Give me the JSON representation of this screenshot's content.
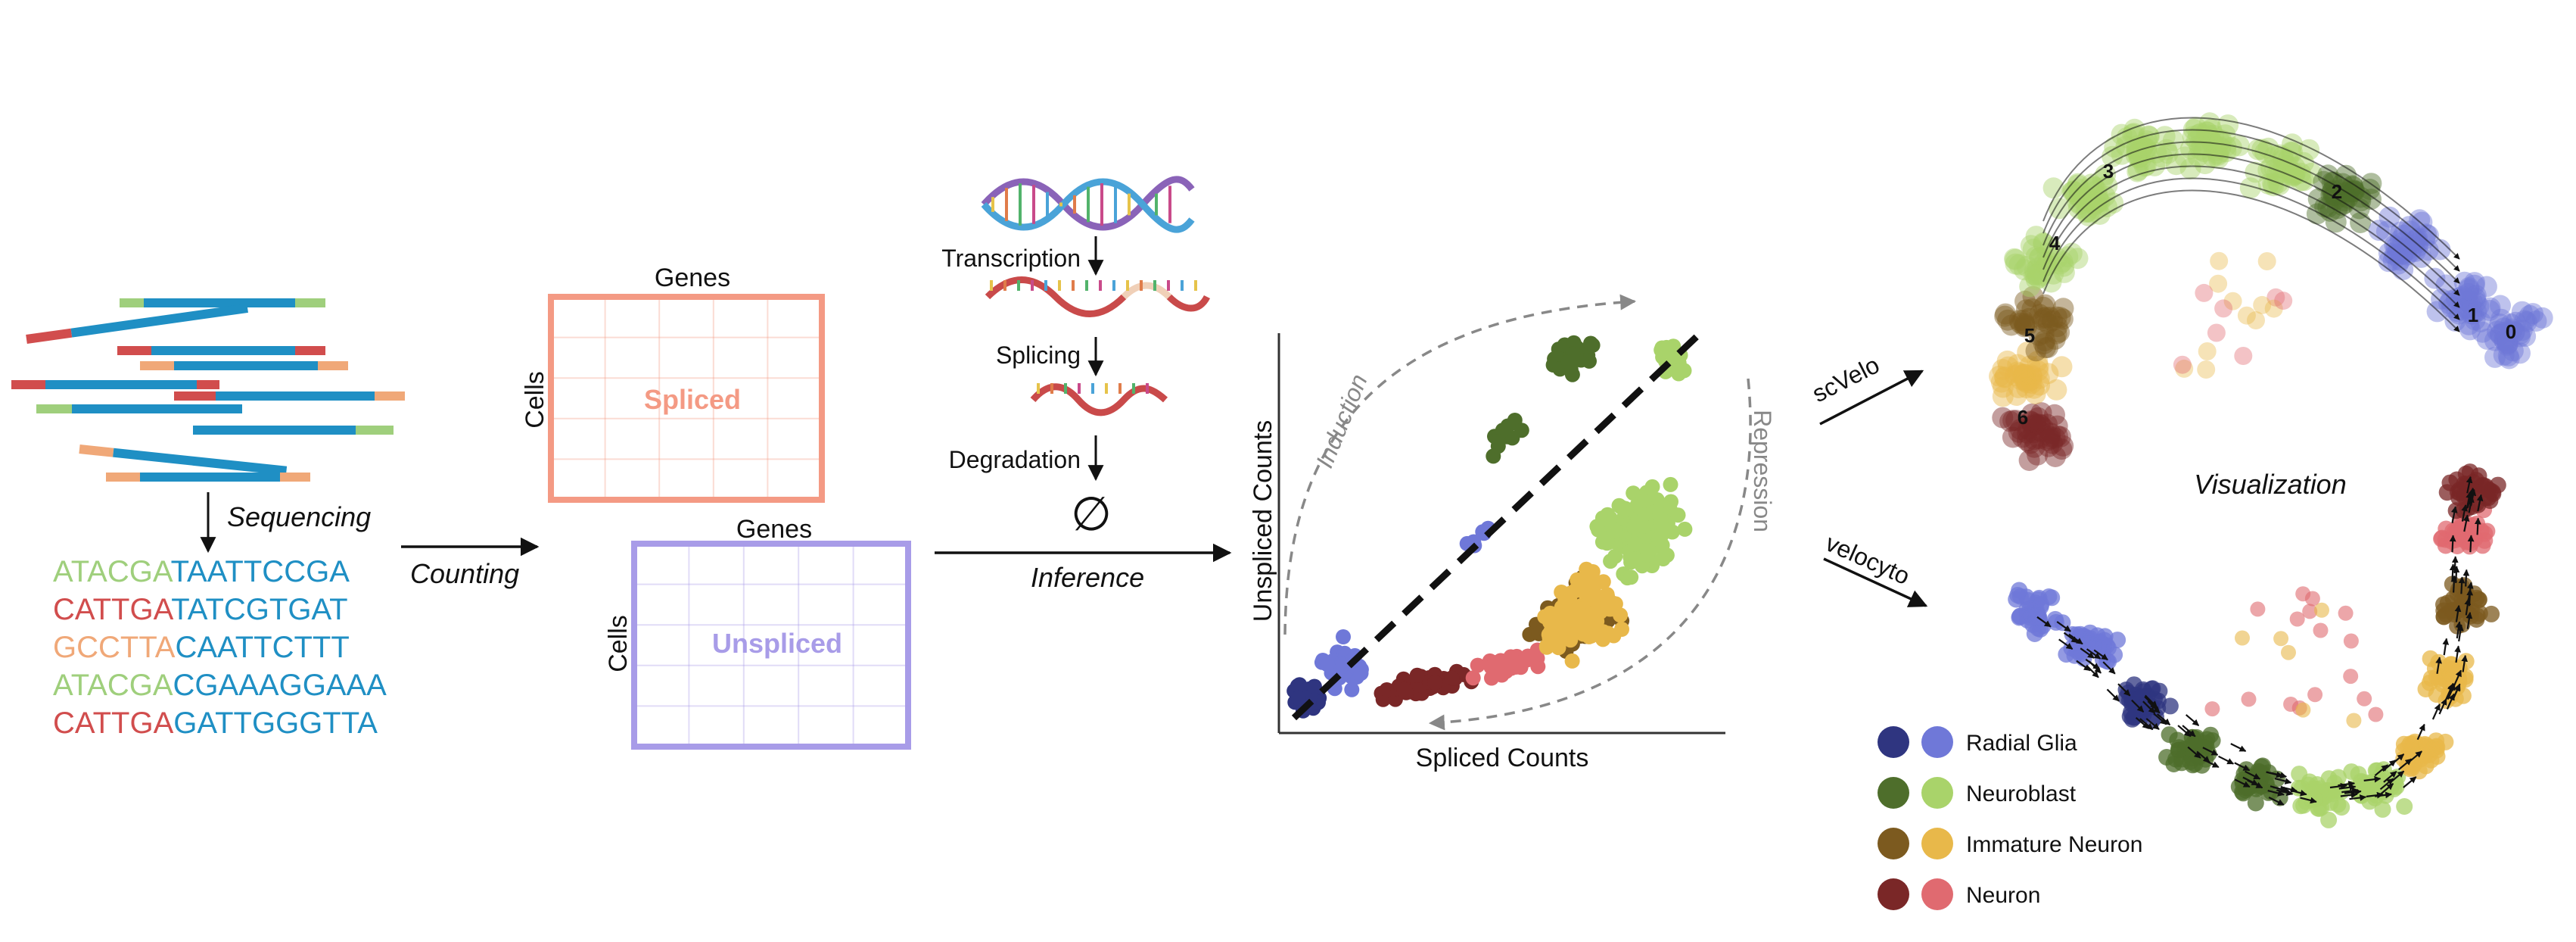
{
  "sequencing": {
    "label": "Sequencing",
    "reads": [
      {
        "prefix": "ATACGA",
        "suffix": "TAATTCCGA",
        "prefix_color": "#9fcf7c"
      },
      {
        "prefix": "CATTGA",
        "suffix": "TATCGTGAT",
        "prefix_color": "#d14d4d"
      },
      {
        "prefix": "GCCTTA",
        "suffix": "CAATTCTTT",
        "prefix_color": "#f0a878"
      },
      {
        "prefix": "ATACGA",
        "suffix": "CGAAAGGAAA",
        "prefix_color": "#9fcf7c"
      },
      {
        "prefix": "CATTGA",
        "suffix": "GATTGGGTTA",
        "prefix_color": "#d14d4d"
      }
    ],
    "suffix_color": "#1f8fc4"
  },
  "counting": {
    "label": "Counting",
    "spliced": {
      "genes": "Genes",
      "cells": "Cells",
      "title": "Spliced",
      "color": "#f49a84"
    },
    "unspliced": {
      "genes": "Genes",
      "cells": "Cells",
      "title": "Unspliced",
      "color": "#a89ce8"
    }
  },
  "inference": {
    "label": "Inference",
    "steps": [
      "Transcription",
      "Splicing",
      "Degradation"
    ],
    "empty_symbol": "∅"
  },
  "phase_plot": {
    "xlabel": "Spliced Counts",
    "ylabel": "Unspliced Counts",
    "induction": "Induction",
    "repression": "Repression"
  },
  "tools": {
    "top": "scVelo",
    "bottom": "velocyto"
  },
  "visualization": {
    "label": "Visualization",
    "cluster_numbers": [
      "0",
      "1",
      "2",
      "3",
      "4",
      "5",
      "6"
    ]
  },
  "legend": [
    {
      "label": "Radial Glia",
      "dark": "#2f3580",
      "light": "#6f78d8"
    },
    {
      "label": "Neuroblast",
      "dark": "#4e6e2b",
      "light": "#a9d36a"
    },
    {
      "label": "Immature Neuron",
      "dark": "#7c5a1f",
      "light": "#e8b84a"
    },
    {
      "label": "Neuron",
      "dark": "#7a2727",
      "light": "#e06a70"
    }
  ]
}
